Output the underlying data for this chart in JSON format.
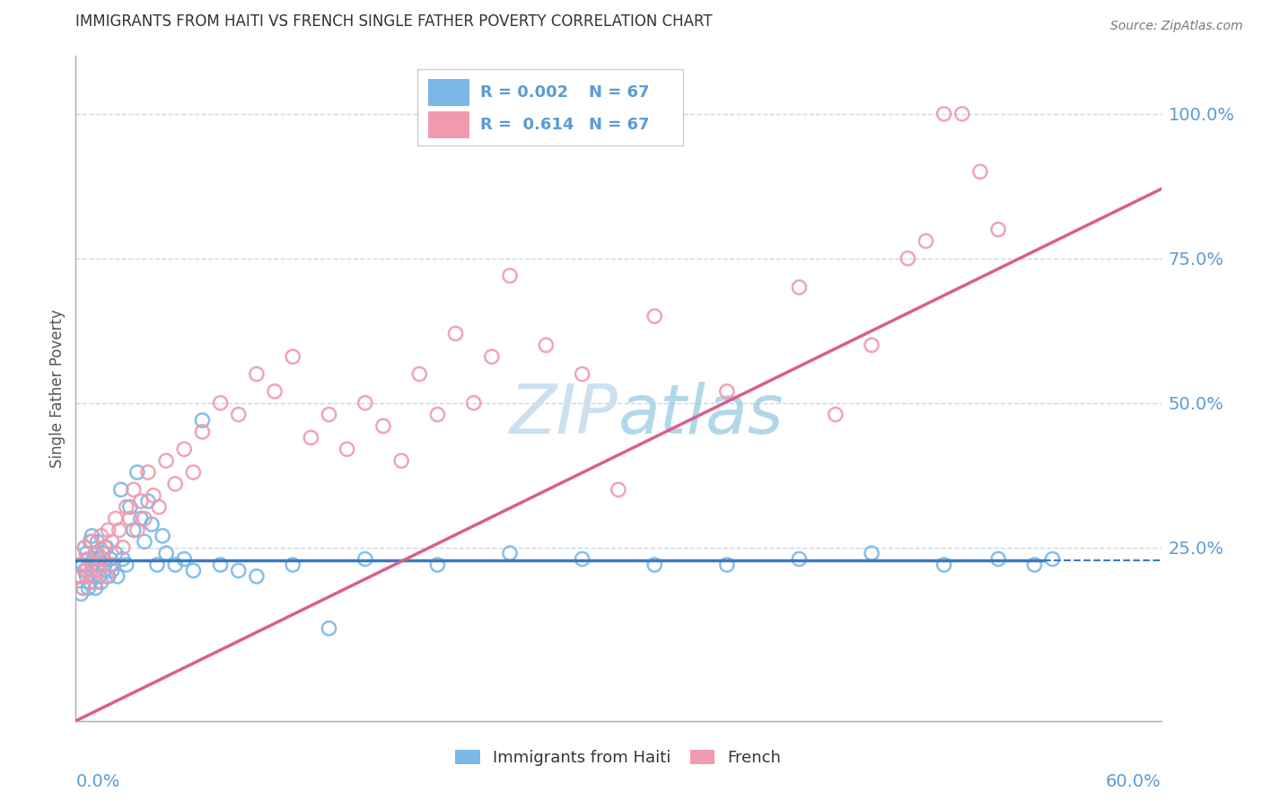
{
  "title": "IMMIGRANTS FROM HAITI VS FRENCH SINGLE FATHER POVERTY CORRELATION CHART",
  "source": "Source: ZipAtlas.com",
  "ylabel": "Single Father Poverty",
  "xmin": 0.0,
  "xmax": 0.6,
  "ymin": -0.05,
  "ymax": 1.1,
  "yticks": [
    0.25,
    0.5,
    0.75,
    1.0
  ],
  "ytick_labels": [
    "25.0%",
    "50.0%",
    "75.0%",
    "100.0%"
  ],
  "legend_r1": "R = 0.002",
  "legend_n1": "N = 67",
  "legend_r2": "R =  0.614",
  "legend_n2": "N = 67",
  "blue_color": "#7ab8e8",
  "pink_color": "#f09ab0",
  "blue_line_color": "#3a7abf",
  "pink_line_color": "#d95f8a",
  "grid_color": "#c8d8e8",
  "watermark_color": "#cce0ef",
  "axis_label_color": "#5b9bd5",
  "title_color": "#333333",
  "blue_scatter_x": [
    0.002,
    0.003,
    0.004,
    0.004,
    0.005,
    0.005,
    0.006,
    0.006,
    0.007,
    0.007,
    0.008,
    0.008,
    0.009,
    0.009,
    0.01,
    0.01,
    0.011,
    0.011,
    0.012,
    0.012,
    0.013,
    0.013,
    0.014,
    0.015,
    0.015,
    0.016,
    0.017,
    0.018,
    0.019,
    0.02,
    0.02,
    0.022,
    0.023,
    0.025,
    0.026,
    0.028,
    0.03,
    0.032,
    0.034,
    0.036,
    0.038,
    0.04,
    0.042,
    0.045,
    0.048,
    0.05,
    0.055,
    0.06,
    0.065,
    0.07,
    0.08,
    0.09,
    0.1,
    0.12,
    0.14,
    0.16,
    0.2,
    0.24,
    0.28,
    0.32,
    0.36,
    0.4,
    0.44,
    0.48,
    0.51,
    0.53,
    0.54
  ],
  "blue_scatter_y": [
    0.2,
    0.17,
    0.22,
    0.18,
    0.25,
    0.21,
    0.2,
    0.24,
    0.18,
    0.23,
    0.26,
    0.19,
    0.22,
    0.27,
    0.23,
    0.2,
    0.24,
    0.18,
    0.22,
    0.26,
    0.2,
    0.23,
    0.19,
    0.24,
    0.21,
    0.22,
    0.25,
    0.2,
    0.23,
    0.22,
    0.21,
    0.24,
    0.2,
    0.35,
    0.23,
    0.22,
    0.32,
    0.28,
    0.38,
    0.3,
    0.26,
    0.33,
    0.29,
    0.22,
    0.27,
    0.24,
    0.22,
    0.23,
    0.21,
    0.47,
    0.22,
    0.21,
    0.2,
    0.22,
    0.11,
    0.23,
    0.22,
    0.24,
    0.23,
    0.22,
    0.22,
    0.23,
    0.24,
    0.22,
    0.23,
    0.22,
    0.23
  ],
  "pink_scatter_x": [
    0.002,
    0.003,
    0.004,
    0.005,
    0.006,
    0.007,
    0.008,
    0.009,
    0.01,
    0.011,
    0.012,
    0.013,
    0.014,
    0.015,
    0.016,
    0.017,
    0.018,
    0.019,
    0.02,
    0.022,
    0.024,
    0.026,
    0.028,
    0.03,
    0.032,
    0.034,
    0.036,
    0.038,
    0.04,
    0.043,
    0.046,
    0.05,
    0.055,
    0.06,
    0.065,
    0.07,
    0.08,
    0.09,
    0.1,
    0.11,
    0.12,
    0.13,
    0.14,
    0.15,
    0.16,
    0.17,
    0.18,
    0.19,
    0.2,
    0.21,
    0.22,
    0.23,
    0.24,
    0.26,
    0.28,
    0.3,
    0.32,
    0.36,
    0.4,
    0.42,
    0.44,
    0.46,
    0.47,
    0.48,
    0.49,
    0.5,
    0.51
  ],
  "pink_scatter_y": [
    0.22,
    0.2,
    0.18,
    0.25,
    0.21,
    0.23,
    0.2,
    0.26,
    0.22,
    0.19,
    0.24,
    0.21,
    0.27,
    0.23,
    0.25,
    0.2,
    0.28,
    0.22,
    0.26,
    0.3,
    0.28,
    0.25,
    0.32,
    0.3,
    0.35,
    0.28,
    0.33,
    0.3,
    0.38,
    0.34,
    0.32,
    0.4,
    0.36,
    0.42,
    0.38,
    0.45,
    0.5,
    0.48,
    0.55,
    0.52,
    0.58,
    0.44,
    0.48,
    0.42,
    0.5,
    0.46,
    0.4,
    0.55,
    0.48,
    0.62,
    0.5,
    0.58,
    0.72,
    0.6,
    0.55,
    0.35,
    0.65,
    0.52,
    0.7,
    0.48,
    0.6,
    0.75,
    0.78,
    1.0,
    1.0,
    0.9,
    0.8
  ],
  "blue_line_x": [
    0.0,
    0.535
  ],
  "blue_line_y": [
    0.228,
    0.228
  ],
  "pink_line_x": [
    0.0,
    0.6
  ],
  "pink_line_y": [
    -0.05,
    0.87
  ]
}
